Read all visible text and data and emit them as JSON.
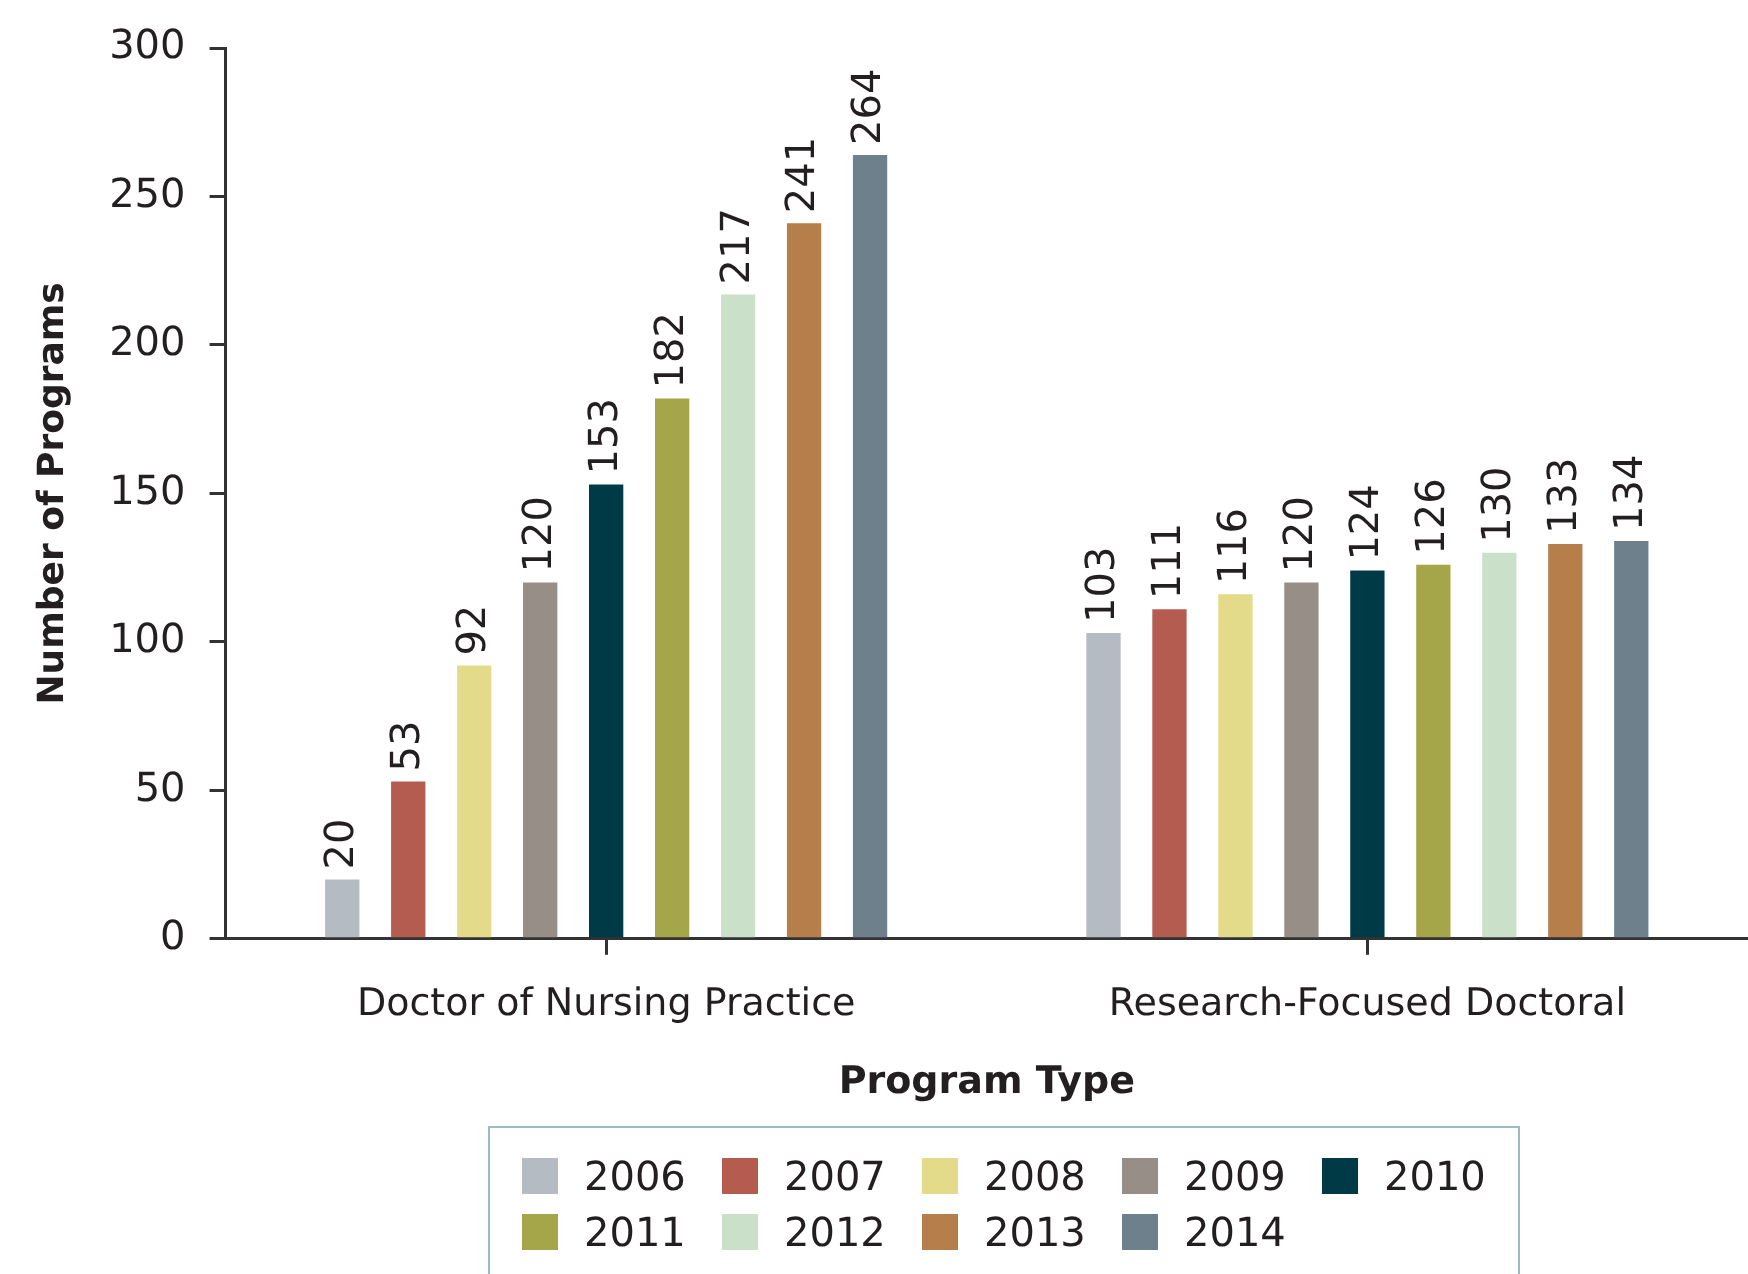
{
  "chart_data": {
    "type": "bar",
    "xlabel": "Program Type",
    "ylabel": "Number of Programs",
    "categories": [
      "Doctor of Nursing Practice",
      "Research-Focused Doctoral"
    ],
    "series": [
      {
        "name": "2006",
        "color": "#b5bbc3",
        "values": [
          20,
          103
        ]
      },
      {
        "name": "2007",
        "color": "#b55c50",
        "values": [
          53,
          111
        ]
      },
      {
        "name": "2008",
        "color": "#e3db8a",
        "values": [
          92,
          116
        ]
      },
      {
        "name": "2009",
        "color": "#978e88",
        "values": [
          120,
          120
        ]
      },
      {
        "name": "2010",
        "color": "#013a47",
        "values": [
          153,
          124
        ]
      },
      {
        "name": "2011",
        "color": "#a5a54a",
        "values": [
          182,
          126
        ]
      },
      {
        "name": "2012",
        "color": "#cbe0c8",
        "values": [
          217,
          130
        ]
      },
      {
        "name": "2013",
        "color": "#b57e4a",
        "values": [
          241,
          133
        ]
      },
      {
        "name": "2014",
        "color": "#6e808c",
        "values": [
          264,
          134
        ]
      }
    ],
    "ylim": [
      0,
      300
    ],
    "yticks": [
      0,
      50,
      100,
      150,
      200,
      250,
      300
    ],
    "grid": false,
    "legend": "bottom",
    "data_labels": true
  }
}
